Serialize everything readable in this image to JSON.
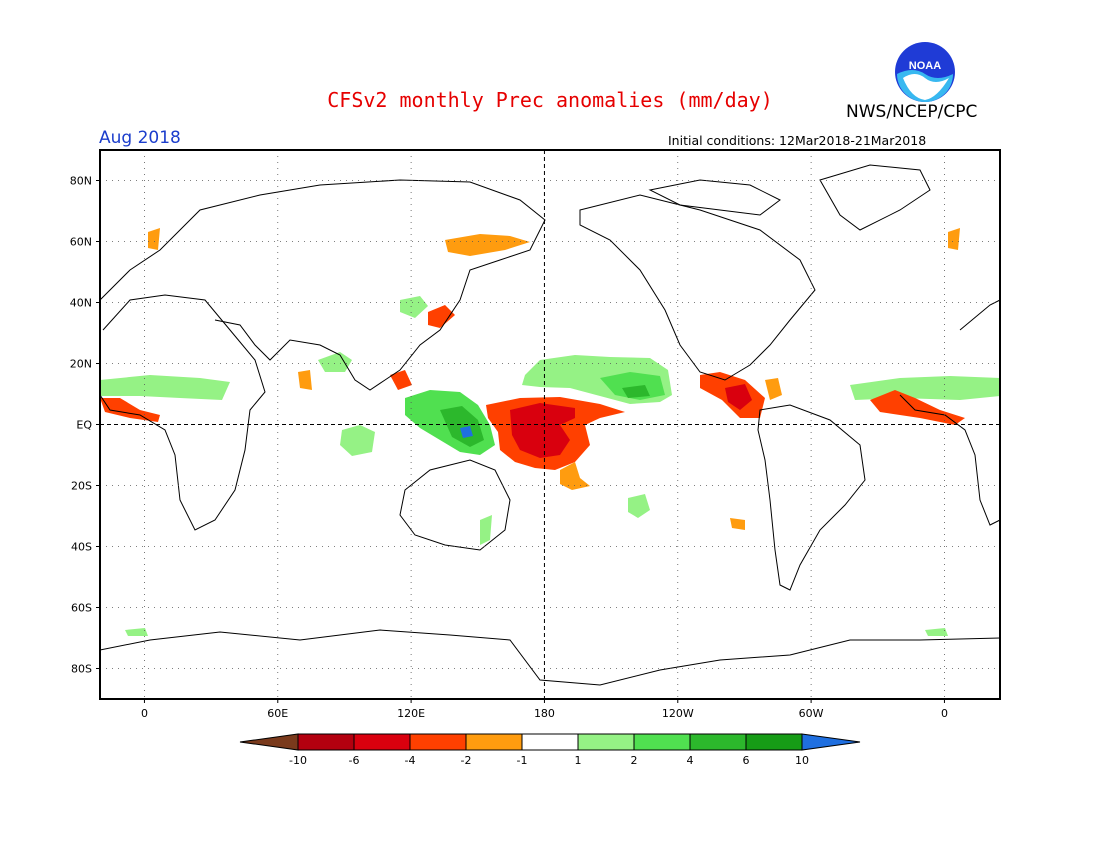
{
  "header": {
    "title": "CFSv2 monthly Prec anomalies (mm/day)",
    "organization": "NWS/NCEP/CPC",
    "month": "Aug 2018",
    "initial_conditions": "Initial conditions: 12Mar2018-21Mar2018",
    "logo_text": "NOAA"
  },
  "map": {
    "lat_labels": [
      "80N",
      "60N",
      "40N",
      "20N",
      "EQ",
      "20S",
      "40S",
      "60S",
      "80S"
    ],
    "lat_values": [
      80,
      60,
      40,
      20,
      0,
      -20,
      -40,
      -60,
      -80
    ],
    "lon_labels": [
      "0",
      "60E",
      "120E",
      "180",
      "120W",
      "60W",
      "0"
    ],
    "lon_values": [
      0,
      60,
      120,
      180,
      240,
      300,
      360
    ],
    "lon_range": [
      -20,
      385
    ],
    "lat_range": [
      -90,
      90
    ]
  },
  "colorbar": {
    "labels": [
      "-10",
      "-6",
      "-4",
      "-2",
      "-1",
      "1",
      "2",
      "4",
      "6",
      "10"
    ],
    "colors": [
      "#7a3a1c",
      "#b3000f",
      "#d9000e",
      "#ff4000",
      "#ff9c0f",
      "#ffffff",
      "#95f285",
      "#50e050",
      "#2cb82c",
      "#169c16",
      "#1f6fe0"
    ]
  },
  "anomaly_colors": {
    "wet_light": "#95f285",
    "wet": "#50e050",
    "wet_strong": "#2cb82c",
    "wet_extreme": "#1f6fe0",
    "dry_light": "#ff9c0f",
    "dry": "#ff4000",
    "dry_strong": "#d9000e"
  }
}
